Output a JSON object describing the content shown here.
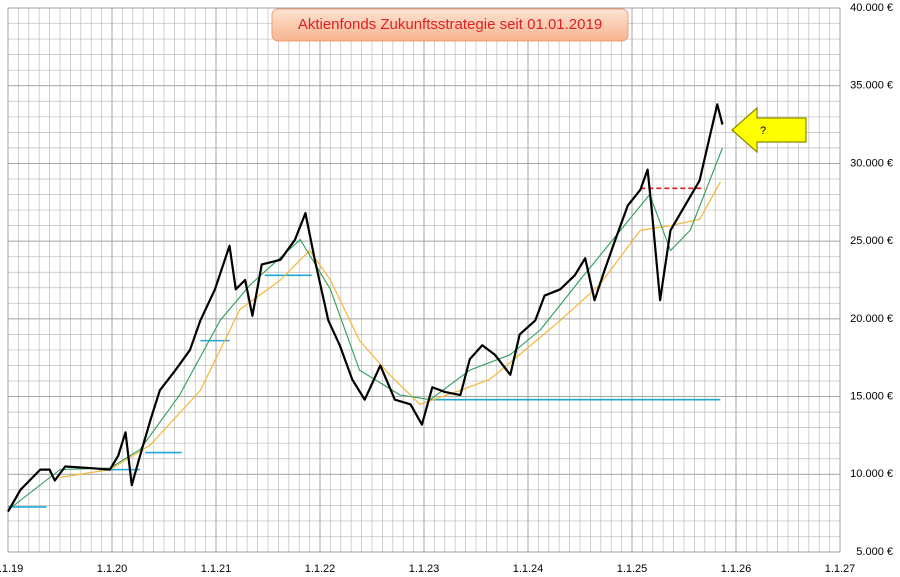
{
  "chart_data": {
    "type": "line",
    "title": "Aktienfonds Zukunftsstrategie seit 01.01.2019",
    "annotation": "?",
    "xlim": [
      2019,
      2027
    ],
    "xticks": [
      {
        "value": 2019,
        "label": "1.1.19"
      },
      {
        "value": 2020,
        "label": "1.1.20"
      },
      {
        "value": 2021,
        "label": "1.1.21"
      },
      {
        "value": 2022,
        "label": "1.1.22"
      },
      {
        "value": 2023,
        "label": "1.1.23"
      },
      {
        "value": 2024,
        "label": "1.1.24"
      },
      {
        "value": 2025,
        "label": "1.1.25"
      },
      {
        "value": 2026,
        "label": "1.1.26"
      },
      {
        "value": 2027,
        "label": "1.1.27"
      }
    ],
    "ylim": [
      5000,
      40000
    ],
    "yticks": [
      {
        "value": 5000,
        "label": "5.000 €"
      },
      {
        "value": 10000,
        "label": "10.000 €"
      },
      {
        "value": 15000,
        "label": "15.000 €"
      },
      {
        "value": 20000,
        "label": "20.000 €"
      },
      {
        "value": 25000,
        "label": "25.000 €"
      },
      {
        "value": 30000,
        "label": "30.000 €"
      },
      {
        "value": 35000,
        "label": "35.000 €"
      },
      {
        "value": 40000,
        "label": "40.000 €"
      }
    ],
    "grid": true,
    "minor_grid": true,
    "series": [
      {
        "color": "#f5b638",
        "width": 1.2,
        "x": [
          2019.5,
          2019.98,
          2020.37,
          2020.85,
          2021.23,
          2021.62,
          2021.9,
          2022.1,
          2022.38,
          2022.67,
          2022.96,
          2023.35,
          2023.63,
          2023.92,
          2024.31,
          2024.69,
          2025.08,
          2025.37,
          2025.65,
          2025.85
        ],
        "values": [
          9800,
          10300,
          11900,
          15400,
          20600,
          22500,
          24400,
          22500,
          18600,
          16400,
          14500,
          15400,
          16100,
          17700,
          19900,
          22200,
          25700,
          26000,
          26400,
          28800
        ]
      },
      {
        "color": "#2e9e5b",
        "width": 1.1,
        "x": [
          2019.0,
          2019.5,
          2019.98,
          2020.27,
          2020.65,
          2021.04,
          2021.33,
          2021.81,
          2022.1,
          2022.38,
          2022.77,
          2023.06,
          2023.44,
          2023.83,
          2024.12,
          2024.5,
          2024.89,
          2025.17,
          2025.37,
          2025.56,
          2025.87
        ],
        "values": [
          7700,
          10300,
          10400,
          11600,
          15100,
          19900,
          22200,
          25100,
          21900,
          16700,
          15100,
          14800,
          16700,
          17700,
          19300,
          22500,
          25700,
          28000,
          24400,
          25700,
          31000
        ]
      },
      {
        "color": "#000000",
        "width": 2.2,
        "x": [
          2019.0,
          2019.12,
          2019.31,
          2019.4,
          2019.45,
          2019.55,
          2019.79,
          2019.98,
          2020.06,
          2020.13,
          2020.19,
          2020.27,
          2020.37,
          2020.46,
          2020.61,
          2020.75,
          2020.85,
          2020.99,
          2021.13,
          2021.19,
          2021.28,
          2021.35,
          2021.44,
          2021.62,
          2021.76,
          2021.86,
          2021.95,
          2022.08,
          2022.19,
          2022.31,
          2022.43,
          2022.58,
          2022.72,
          2022.87,
          2022.98,
          2023.08,
          2023.2,
          2023.35,
          2023.44,
          2023.56,
          2023.68,
          2023.83,
          2023.92,
          2024.07,
          2024.16,
          2024.31,
          2024.45,
          2024.55,
          2024.64,
          2024.74,
          2024.84,
          2024.96,
          2025.08,
          2025.15,
          2025.19,
          2025.27,
          2025.37,
          2025.51,
          2025.65,
          2025.75,
          2025.82,
          2025.87
        ],
        "values": [
          7600,
          9000,
          10300,
          10300,
          9600,
          10500,
          10400,
          10300,
          11200,
          12700,
          9300,
          11200,
          13500,
          15400,
          16700,
          18000,
          19900,
          21900,
          24700,
          21900,
          22500,
          20200,
          23500,
          23800,
          25100,
          26800,
          23800,
          19900,
          18300,
          16100,
          14800,
          17000,
          14800,
          14500,
          13200,
          15600,
          15300,
          15100,
          17400,
          18300,
          17700,
          16400,
          19000,
          19900,
          21500,
          21900,
          22800,
          23900,
          21200,
          23200,
          25100,
          27300,
          28300,
          29600,
          27000,
          21200,
          25700,
          27300,
          28900,
          31800,
          33800,
          32500
        ]
      }
    ],
    "levels": [
      {
        "color": "#1ea7d6",
        "x": [
          2019.0,
          2019.37
        ],
        "value": 7900
      },
      {
        "color": "#1ea7d6",
        "x": [
          2019.88,
          2020.27
        ],
        "value": 10300
      },
      {
        "color": "#1ea7d6",
        "x": [
          2020.32,
          2020.67
        ],
        "value": 11400
      },
      {
        "color": "#1ea7d6",
        "x": [
          2020.85,
          2021.13
        ],
        "value": 18600
      },
      {
        "color": "#1ea7d6",
        "x": [
          2021.47,
          2021.92
        ],
        "value": 22800
      },
      {
        "color": "#1ea7d6",
        "x": [
          2023.06,
          2025.85
        ],
        "value": 14800
      },
      {
        "color": "#d62020",
        "x": [
          2025.08,
          2025.7
        ],
        "value": 28400
      }
    ]
  }
}
